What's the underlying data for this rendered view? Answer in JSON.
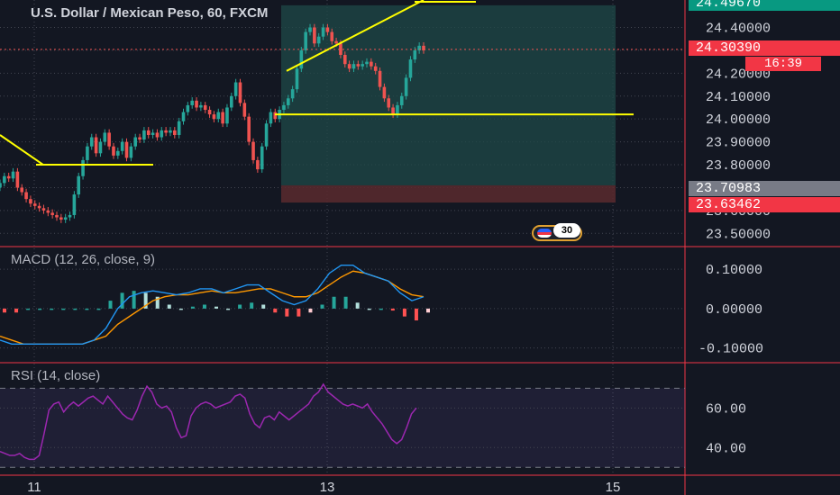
{
  "title": "U.S. Dollar / Mexican Peso, 60, FXCM",
  "colors": {
    "background": "#131722",
    "up": "#26a69a",
    "down": "#ef5350",
    "trendline": "#ffff00",
    "macd": "#2196f3",
    "signal": "#ff9800",
    "rsi": "#9c27b0",
    "profit_zone": "#1f4a48",
    "loss_zone": "#5a2a2e",
    "pane_border": "#f23645"
  },
  "price_tags": {
    "top": "24.49670",
    "current": "24.30390",
    "countdown": "16:39",
    "entry": "23.70983",
    "stop": "23.63462"
  },
  "badge_count": "30",
  "icons": {
    "badge": "us-flag-icon"
  },
  "chart_data": [
    {
      "type": "candlestick",
      "title": "U.S. Dollar / Mexican Peso, 60, FXCM",
      "ylim": [
        23.45,
        24.52
      ],
      "y_ticks": [
        "24.40000",
        "24.30000",
        "24.20000",
        "24.10000",
        "24.00000",
        "23.90000",
        "23.80000",
        "23.70000",
        "23.60000",
        "23.50000"
      ],
      "x_ticks": [
        "11",
        "13",
        "15"
      ],
      "close_series": [
        23.72,
        23.75,
        23.74,
        23.77,
        23.7,
        23.68,
        23.65,
        23.63,
        23.62,
        23.61,
        23.6,
        23.59,
        23.58,
        23.57,
        23.56,
        23.57,
        23.58,
        23.67,
        23.75,
        23.82,
        23.88,
        23.92,
        23.85,
        23.9,
        23.94,
        23.88,
        23.84,
        23.86,
        23.9,
        23.83,
        23.88,
        23.92,
        23.91,
        23.95,
        23.93,
        23.94,
        23.92,
        23.95,
        23.94,
        23.95,
        23.93,
        23.99,
        24.03,
        24.06,
        24.08,
        24.05,
        24.06,
        24.04,
        24.02,
        24.0,
        24.03,
        23.98,
        24.05,
        24.1,
        24.16,
        24.07,
        24.01,
        23.9,
        23.82,
        23.78,
        23.88,
        23.98,
        24.03,
        24.0,
        24.04,
        24.06,
        24.09,
        24.13,
        24.22,
        24.3,
        24.38,
        24.4,
        24.33,
        24.36,
        24.4,
        24.38,
        24.34,
        24.33,
        24.28,
        24.24,
        24.22,
        24.24,
        24.23,
        24.24,
        24.25,
        24.23,
        24.21,
        24.14,
        24.09,
        24.05,
        24.02,
        24.06,
        24.1,
        24.18,
        24.26,
        24.3,
        24.32,
        24.3
      ],
      "trendlines": [
        {
          "y": 23.8
        },
        {
          "y": 24.02
        },
        {
          "from": 24.21,
          "to": 24.52
        }
      ],
      "position": {
        "entry": 23.70983,
        "stop": 23.63462,
        "target": 24.4967
      }
    },
    {
      "type": "line",
      "title": "MACD (12, 26, close, 9)",
      "ylim": [
        -0.135,
        0.155
      ],
      "y_ticks": [
        "0.10000",
        "0.00000",
        "-0.10000"
      ],
      "series": [
        {
          "values": [
            -0.08,
            -0.09,
            -0.09,
            -0.09,
            -0.09,
            -0.09,
            -0.09,
            -0.09,
            -0.08,
            -0.05,
            0.0,
            0.03,
            0.04,
            0.045,
            0.04,
            0.035,
            0.04,
            0.05,
            0.05,
            0.04,
            0.05,
            0.06,
            0.06,
            0.04,
            0.02,
            0.01,
            0.02,
            0.05,
            0.09,
            0.11,
            0.11,
            0.09,
            0.08,
            0.07,
            0.04,
            0.02,
            0.03
          ]
        },
        {
          "values": [
            -0.07,
            -0.08,
            -0.09,
            -0.09,
            -0.09,
            -0.09,
            -0.09,
            -0.09,
            -0.08,
            -0.07,
            -0.04,
            -0.02,
            0.0,
            0.02,
            0.03,
            0.035,
            0.035,
            0.04,
            0.045,
            0.04,
            0.04,
            0.045,
            0.05,
            0.05,
            0.04,
            0.03,
            0.03,
            0.04,
            0.06,
            0.08,
            0.095,
            0.09,
            0.08,
            0.07,
            0.05,
            0.035,
            0.03
          ]
        }
      ],
      "histogram": [
        -0.01,
        -0.01,
        0.0,
        0.0,
        0.0,
        0.0,
        0.0,
        0.0,
        0.0,
        0.02,
        0.04,
        0.045,
        0.04,
        0.03,
        0.01,
        0.0,
        0.005,
        0.01,
        0.005,
        0.0,
        0.01,
        0.015,
        0.01,
        -0.01,
        -0.02,
        -0.02,
        -0.01,
        0.01,
        0.03,
        0.03,
        0.015,
        0.0,
        0.0,
        -0.005,
        -0.02,
        -0.03,
        -0.01
      ]
    },
    {
      "type": "line",
      "title": "RSI (14, close)",
      "ylim": [
        26,
        82
      ],
      "y_ticks": [
        "60.00",
        "40.00"
      ],
      "series": [
        {
          "values": [
            38,
            37,
            36,
            36,
            37,
            35,
            34,
            34,
            36,
            47,
            59,
            62,
            63,
            58,
            61,
            63,
            61,
            63,
            65,
            66,
            64,
            62,
            66,
            63,
            60,
            57,
            55,
            54,
            59,
            66,
            71,
            68,
            62,
            60,
            61,
            58,
            50,
            45,
            46,
            56,
            60,
            62,
            63,
            62,
            60,
            61,
            62,
            63,
            66,
            67,
            65,
            57,
            52,
            50,
            55,
            56,
            54,
            58,
            56,
            54,
            56,
            58,
            60,
            62,
            66,
            68,
            72,
            68,
            66,
            64,
            62,
            61,
            62,
            61,
            60,
            62,
            58,
            55,
            52,
            48,
            44,
            42,
            44,
            50,
            57,
            60
          ]
        }
      ],
      "bands": [
        70,
        30
      ]
    }
  ]
}
